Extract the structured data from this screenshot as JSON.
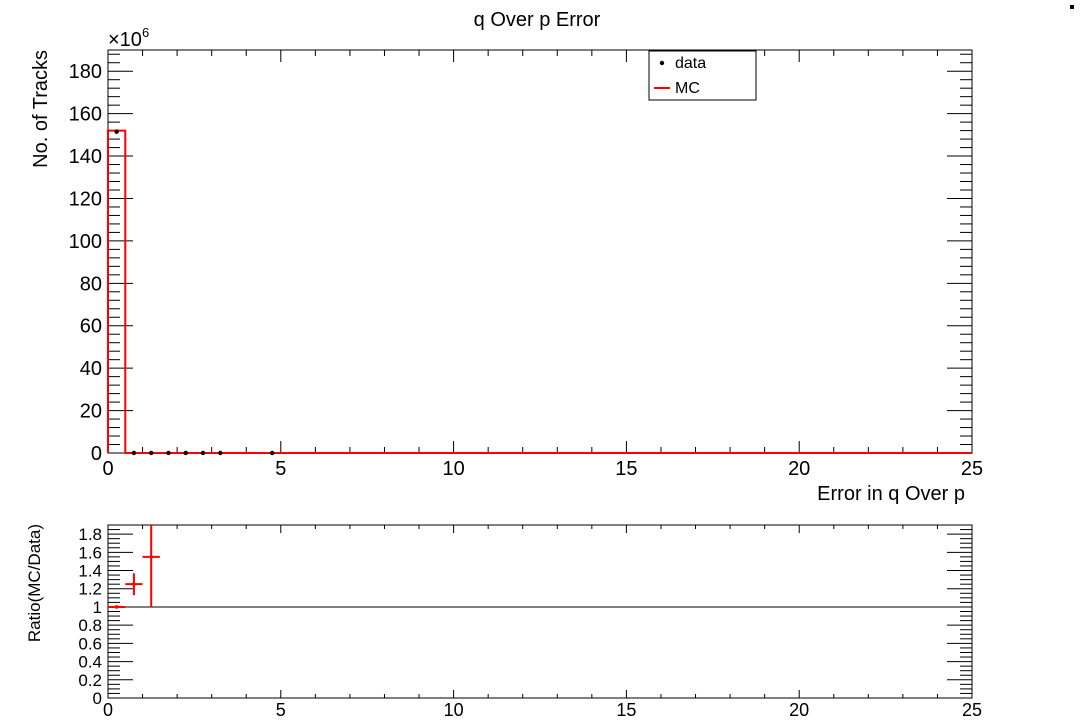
{
  "chart_data": [
    {
      "type": "histogram",
      "title": "q Over p Error",
      "xlabel": "Error in q Over p",
      "ylabel": "No. of Tracks",
      "y_multiplier_label": "×10",
      "y_multiplier_exponent": "6",
      "xlim": [
        0,
        25
      ],
      "ylim": [
        0,
        190
      ],
      "x_ticks": [
        0,
        5,
        10,
        15,
        20,
        25
      ],
      "y_ticks": [
        0,
        20,
        40,
        60,
        80,
        100,
        120,
        140,
        160,
        180
      ],
      "legend_placement": "top-center-right",
      "legend": [
        {
          "label": "data",
          "marker": "dot",
          "color": "#000000"
        },
        {
          "label": "MC",
          "marker": "line",
          "color": "#ff0000"
        }
      ],
      "series": [
        {
          "name": "data",
          "style": "points",
          "color": "#000000",
          "x": [
            0.25,
            0.75,
            1.25,
            1.75,
            2.25,
            2.75,
            3.25,
            4.75
          ],
          "y": [
            151.5,
            0.05,
            0.03,
            0.02,
            0.01,
            0.01,
            0.005,
            0.002
          ]
        },
        {
          "name": "MC",
          "style": "step",
          "color": "#ff0000",
          "bin_edges": [
            0,
            0.5,
            25
          ],
          "values": [
            152,
            0
          ]
        }
      ]
    },
    {
      "type": "scatter",
      "title": "",
      "xlabel": "",
      "ylabel": "Ratio(MC/Data)",
      "xlim": [
        0,
        25
      ],
      "ylim": [
        0,
        1.9
      ],
      "x_ticks": [
        0,
        5,
        10,
        15,
        20,
        25
      ],
      "y_ticks": [
        0,
        0.2,
        0.4,
        0.6,
        0.8,
        1,
        1.2,
        1.4,
        1.6,
        1.8
      ],
      "y_tick_labels": [
        "0",
        "0.2",
        "0.4",
        "0.6",
        "0.8",
        "1",
        "1.2",
        "1.4",
        "1.6",
        "1.8"
      ],
      "reference_line": 1,
      "series": [
        {
          "style": "points-with-errors",
          "color": "#ff0000",
          "points": [
            {
              "x": 0.25,
              "y": 1.0,
              "xerr": 0.25,
              "yerr": 0.0
            },
            {
              "x": 0.75,
              "y": 1.25,
              "xerr": 0.25,
              "yerr": 0.12
            },
            {
              "x": 1.25,
              "y": 1.55,
              "xerr": 0.25,
              "yerr": 0.55
            }
          ]
        }
      ]
    }
  ]
}
